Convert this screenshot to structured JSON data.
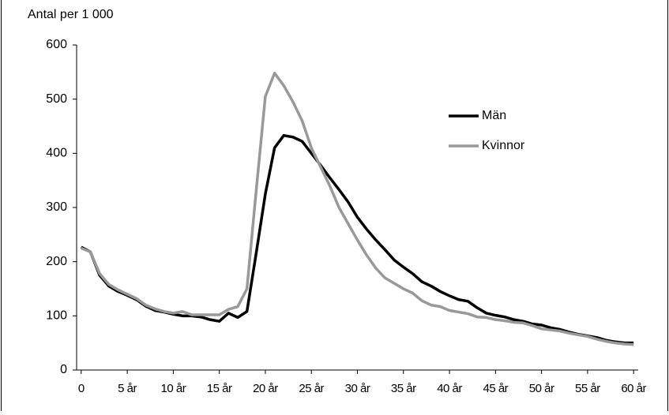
{
  "chart_data": {
    "type": "line",
    "y_axis_label": "Antal per 1 000",
    "categories": [
      "0",
      null,
      null,
      null,
      null,
      "5 år",
      null,
      null,
      null,
      null,
      "10 år",
      null,
      null,
      null,
      null,
      "15 år",
      null,
      null,
      null,
      null,
      "20 år",
      null,
      null,
      null,
      null,
      "25 år",
      null,
      null,
      null,
      null,
      "30 år",
      null,
      null,
      null,
      null,
      "35 år",
      null,
      null,
      null,
      null,
      "40 år",
      null,
      null,
      null,
      null,
      "45 år",
      null,
      null,
      null,
      null,
      "50 år",
      null,
      null,
      null,
      null,
      "55 år",
      null,
      null,
      null,
      null,
      "60 år"
    ],
    "series": [
      {
        "name": "Män",
        "color": "#000000",
        "values": [
          227,
          218,
          175,
          155,
          145,
          138,
          130,
          118,
          110,
          107,
          103,
          100,
          100,
          98,
          93,
          90,
          105,
          97,
          108,
          215,
          325,
          410,
          433,
          430,
          422,
          400,
          378,
          355,
          333,
          310,
          282,
          260,
          240,
          222,
          203,
          190,
          178,
          163,
          155,
          145,
          137,
          130,
          127,
          115,
          105,
          101,
          98,
          93,
          90,
          85,
          83,
          78,
          75,
          70,
          66,
          63,
          60,
          55,
          52,
          50,
          50
        ]
      },
      {
        "name": "Kvinnor",
        "color": "#999999",
        "values": [
          225,
          218,
          178,
          158,
          148,
          140,
          132,
          120,
          113,
          108,
          105,
          108,
          102,
          102,
          102,
          102,
          112,
          117,
          150,
          330,
          505,
          548,
          525,
          495,
          460,
          410,
          375,
          340,
          300,
          270,
          240,
          212,
          188,
          170,
          160,
          150,
          142,
          128,
          120,
          117,
          110,
          107,
          104,
          98,
          97,
          93,
          91,
          88,
          87,
          82,
          76,
          74,
          72,
          68,
          65,
          62,
          57,
          53,
          50,
          48,
          47
        ]
      }
    ],
    "ylim": [
      0,
      600
    ],
    "yticks": [
      0,
      100,
      200,
      300,
      400,
      500,
      600
    ],
    "legend": "upper-right"
  }
}
